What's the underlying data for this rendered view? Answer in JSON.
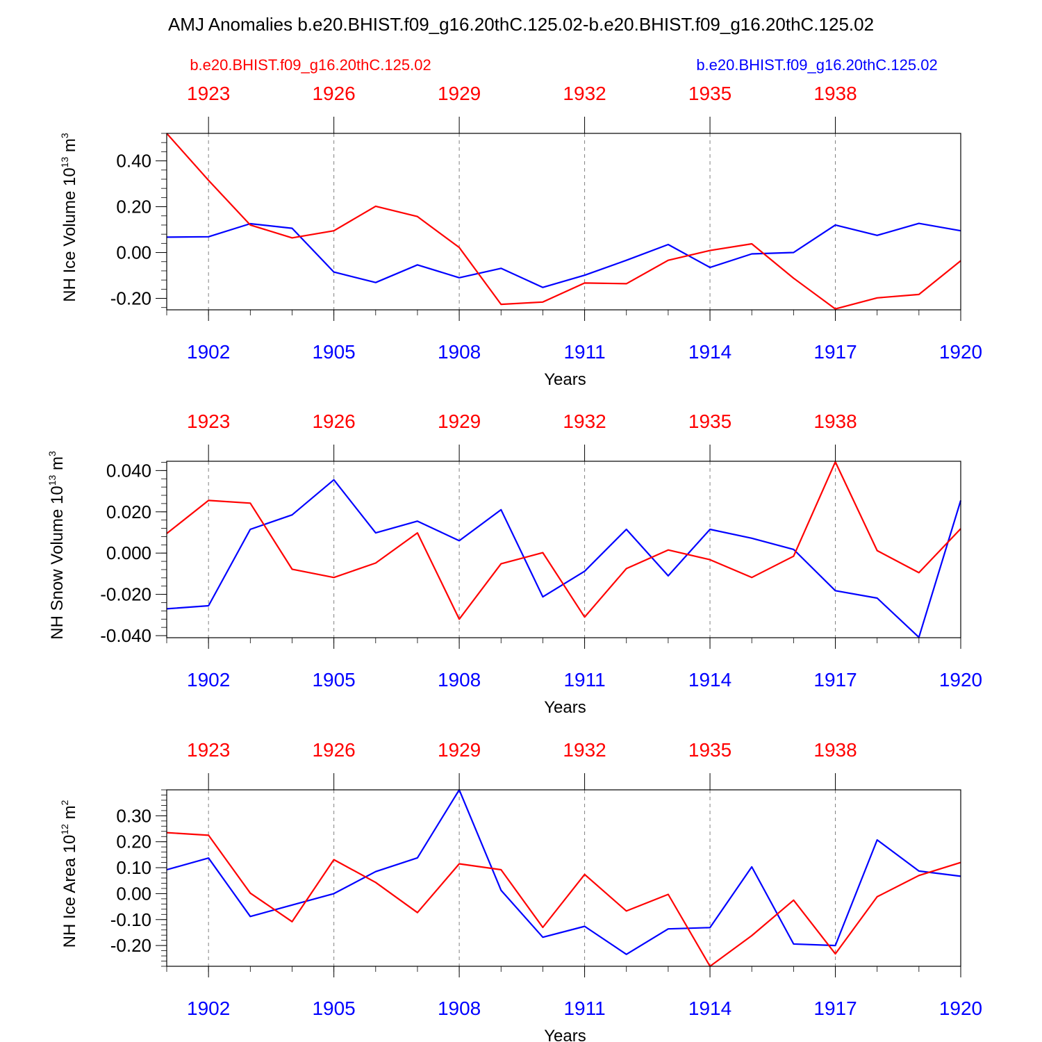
{
  "figure": {
    "title": "AMJ Anomalies b.e20.BHIST.f09_g16.20thC.125.02-b.e20.BHIST.f09_g16.20thC.125.02",
    "left_case_label": "b.e20.BHIST.f09_g16.20thC.125.02",
    "right_case_label": "b.e20.BHIST.f09_g16.20thC.125.02",
    "colors": {
      "red_series": "#ff0000",
      "blue_series": "#0000ff",
      "axis": "#000000",
      "grid": "#808080"
    }
  },
  "chart_data": [
    {
      "type": "line",
      "ylabel": "NH Ice Volume 10",
      "ylabel_exp": "13",
      "ylabel_unit": " m",
      "ylabel_unit_exp": "3",
      "xlabel": "Years",
      "ylim": [
        -0.25,
        0.52
      ],
      "yticks": [
        -0.2,
        0.0,
        0.2,
        0.4
      ],
      "ytick_labels": [
        "-0.20",
        "0.00",
        "0.20",
        "0.40"
      ],
      "yminor_step": 0.04,
      "bottom_xlim": [
        1901,
        1920
      ],
      "bottom_xticks": [
        1902,
        1905,
        1908,
        1911,
        1914,
        1917,
        1920
      ],
      "top_xlim": [
        1922,
        1941
      ],
      "top_xticks": [
        1923,
        1926,
        1929,
        1932,
        1935,
        1938
      ],
      "grid_x": [
        1902,
        1905,
        1908,
        1911,
        1914,
        1917
      ],
      "series": [
        {
          "name": "b.e20.BHIST.f09_g16.20thC.125.02",
          "color": "#0000ff",
          "x": [
            1901,
            1902,
            1903,
            1904,
            1905,
            1906,
            1907,
            1908,
            1909,
            1910,
            1911,
            1912,
            1913,
            1914,
            1915,
            1916,
            1917,
            1918,
            1919,
            1920
          ],
          "values": [
            0.067,
            0.069,
            0.126,
            0.106,
            -0.085,
            -0.131,
            -0.054,
            -0.11,
            -0.069,
            -0.152,
            -0.099,
            -0.034,
            0.035,
            -0.065,
            -0.006,
            0.0,
            0.12,
            0.075,
            0.127,
            0.095
          ]
        },
        {
          "name": "b.e20.BHIST.f09_g16.20thC.125.02",
          "color": "#ff0000",
          "x": [
            1901,
            1902,
            1903,
            1904,
            1905,
            1906,
            1907,
            1908,
            1909,
            1910,
            1911,
            1912,
            1913,
            1914,
            1915,
            1916,
            1917,
            1918,
            1919,
            1920
          ],
          "values": [
            0.52,
            0.315,
            0.12,
            0.064,
            0.095,
            0.202,
            0.157,
            0.022,
            -0.226,
            -0.216,
            -0.133,
            -0.136,
            -0.034,
            0.009,
            0.038,
            -0.112,
            -0.246,
            -0.198,
            -0.183,
            -0.036
          ]
        }
      ]
    },
    {
      "type": "line",
      "ylabel": "NH Snow Volume 10",
      "ylabel_exp": "13",
      "ylabel_unit": " m",
      "ylabel_unit_exp": "3",
      "xlabel": "Years",
      "ylim": [
        -0.041,
        0.0445
      ],
      "yticks": [
        -0.04,
        -0.02,
        0.0,
        0.02,
        0.04
      ],
      "ytick_labels": [
        "-0.040",
        "-0.020",
        "0.000",
        "0.020",
        "0.040"
      ],
      "yminor_step": 0.004,
      "bottom_xlim": [
        1901,
        1920
      ],
      "bottom_xticks": [
        1902,
        1905,
        1908,
        1911,
        1914,
        1917,
        1920
      ],
      "top_xlim": [
        1922,
        1941
      ],
      "top_xticks": [
        1923,
        1926,
        1929,
        1932,
        1935,
        1938
      ],
      "grid_x": [
        1902,
        1905,
        1908,
        1911,
        1914,
        1917
      ],
      "series": [
        {
          "name": "b.e20.BHIST.f09_g16.20thC.125.02",
          "color": "#0000ff",
          "x": [
            1901,
            1902,
            1903,
            1904,
            1905,
            1906,
            1907,
            1908,
            1909,
            1910,
            1911,
            1912,
            1913,
            1914,
            1915,
            1916,
            1917,
            1918,
            1919,
            1920
          ],
          "values": [
            -0.027,
            -0.0255,
            0.0115,
            0.0185,
            0.0355,
            0.0098,
            0.0155,
            0.006,
            0.021,
            -0.0212,
            -0.0088,
            0.0115,
            -0.011,
            0.0115,
            0.0072,
            0.0018,
            -0.0182,
            -0.0218,
            -0.0408,
            0.0255
          ]
        },
        {
          "name": "b.e20.BHIST.f09_g16.20thC.125.02",
          "color": "#ff0000",
          "x": [
            1901,
            1902,
            1903,
            1904,
            1905,
            1906,
            1907,
            1908,
            1909,
            1910,
            1911,
            1912,
            1913,
            1914,
            1915,
            1916,
            1917,
            1918,
            1919,
            1920
          ],
          "values": [
            0.0095,
            0.0255,
            0.0242,
            -0.0078,
            -0.0118,
            -0.0048,
            0.0098,
            -0.032,
            -0.0052,
            0.0002,
            -0.031,
            -0.0075,
            0.0015,
            -0.0032,
            -0.0118,
            -0.0015,
            0.0442,
            0.0012,
            -0.0095,
            0.0118
          ]
        }
      ]
    },
    {
      "type": "line",
      "ylabel": "NH Ice Area 10",
      "ylabel_exp": "12",
      "ylabel_unit": " m",
      "ylabel_unit_exp": "2",
      "xlabel": "Years",
      "ylim": [
        -0.28,
        0.4
      ],
      "yticks": [
        -0.2,
        -0.1,
        0.0,
        0.1,
        0.2,
        0.3
      ],
      "ytick_labels": [
        "-0.20",
        "-0.10",
        "0.00",
        "0.10",
        "0.20",
        "0.30"
      ],
      "yminor_step": 0.02,
      "bottom_xlim": [
        1901,
        1920
      ],
      "bottom_xticks": [
        1902,
        1905,
        1908,
        1911,
        1914,
        1917,
        1920
      ],
      "top_xlim": [
        1922,
        1941
      ],
      "top_xticks": [
        1923,
        1926,
        1929,
        1932,
        1935,
        1938
      ],
      "grid_x": [
        1902,
        1905,
        1908,
        1911,
        1914,
        1917
      ],
      "series": [
        {
          "name": "b.e20.BHIST.f09_g16.20thC.125.02",
          "color": "#0000ff",
          "x": [
            1901,
            1902,
            1903,
            1904,
            1905,
            1906,
            1907,
            1908,
            1909,
            1910,
            1911,
            1912,
            1913,
            1914,
            1915,
            1916,
            1917,
            1918,
            1919,
            1920
          ],
          "values": [
            0.092,
            0.137,
            -0.088,
            -0.044,
            0.0,
            0.085,
            0.138,
            0.4,
            0.013,
            -0.168,
            -0.126,
            -0.234,
            -0.136,
            -0.131,
            0.103,
            -0.194,
            -0.2,
            0.207,
            0.087,
            0.067
          ]
        },
        {
          "name": "b.e20.BHIST.f09_g16.20thC.125.02",
          "color": "#ff0000",
          "x": [
            1901,
            1902,
            1903,
            1904,
            1905,
            1906,
            1907,
            1908,
            1909,
            1910,
            1911,
            1912,
            1913,
            1914,
            1915,
            1916,
            1917,
            1918,
            1919,
            1920
          ],
          "values": [
            0.235,
            0.225,
            0.002,
            -0.108,
            0.131,
            0.043,
            -0.073,
            0.115,
            0.092,
            -0.13,
            0.074,
            -0.067,
            -0.003,
            -0.28,
            -0.162,
            -0.025,
            -0.232,
            -0.012,
            0.07,
            0.12
          ]
        }
      ]
    }
  ]
}
